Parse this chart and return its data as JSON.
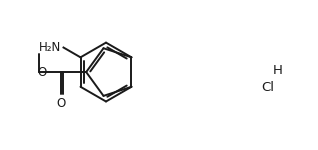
{
  "bg_color": "#ffffff",
  "line_color": "#1a1a1a",
  "line_width": 1.4,
  "font_size": 8.5,
  "nh2_text": "H₂N",
  "o_carbonyl": "O",
  "hcl_h": "H",
  "hcl_cl": "Cl"
}
